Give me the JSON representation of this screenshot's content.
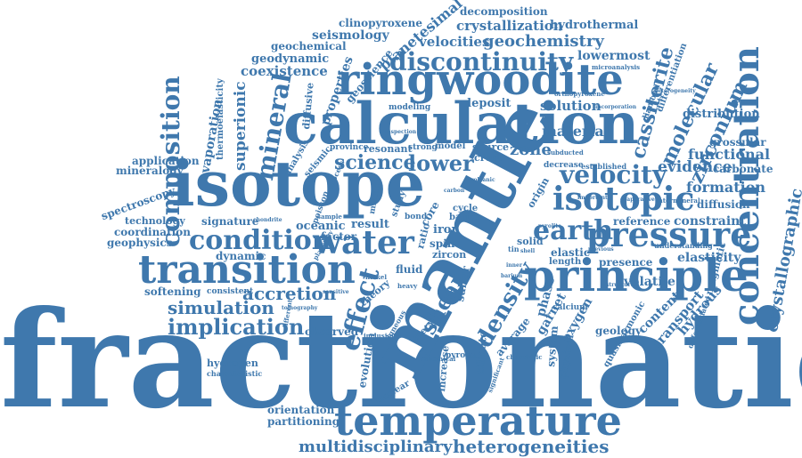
{
  "cloud": {
    "color": "#3f78ad",
    "background": "#ffffff",
    "words": {
      "fractionation": "fractionation",
      "mantle": "mantle",
      "isotope": "isotope",
      "calculation": "calculation",
      "ringwoodite": "ringwoodite",
      "temperature": "temperature",
      "principle": "principle",
      "transition": "transition",
      "pressure": "pressure",
      "concentration": "concentration",
      "water": "water",
      "isotopic": "isotopic",
      "condition": "condition",
      "composition": "composition",
      "discontinuity": "discontinuity",
      "velocity": "velocity",
      "earth": "earth",
      "mineral": "mineral",
      "effect": "effect",
      "density": "density",
      "shear": "shear",
      "implication": "implication",
      "simulation": "simulation",
      "accretion": "accretion",
      "heterogeneities": "heterogeneities",
      "multidisciplinary": "multidisciplinary",
      "cassiterite": "cassiterite",
      "molecular": "molecular",
      "zirconium": "zirconium",
      "crystallographic": "crystallographic",
      "lower": "lower",
      "science": "science",
      "geochemistry": "geochemistry",
      "crystallization": "crystallization",
      "velocities": "velocities",
      "planetesimal": "planetesimal",
      "seismology": "seismology",
      "clinopyroxene": "clinopyroxene",
      "decomposition": "decomposition",
      "hydrothermal": "hydrothermal",
      "lowermost": "lowermost",
      "geochemical": "geochemical",
      "geodynamic": "geodynamic",
      "coexistence": "coexistence",
      "superionic": "superionic",
      "evaporation": "evaporation",
      "thermoelasticity": "thermoelasticity",
      "diffusive": "diffusive",
      "properties": "properties",
      "geoscience": "geoscience",
      "solution": "solution",
      "deposit": "deposit",
      "material": "material",
      "zone": "zone",
      "evidence": "evidence",
      "formation": "formation",
      "functional": "functional",
      "distribution": "distribution",
      "grossular": "grossular",
      "carbonate": "carbonate",
      "diffusion": "diffusion",
      "constraint": "constraint",
      "reference": "reference",
      "elastic": "elastic",
      "presence": "presence",
      "elasticity": "elasticity",
      "hydrous": "hydrous",
      "transport": "transport",
      "content": "content",
      "volatile": "volatile",
      "garnet": "garnet",
      "oxygen": "oxygen",
      "phase": "phase",
      "geology": "geology",
      "quasiharmonic": "quasiharmonic",
      "magmatic": "magmatic",
      "differentiation": "differentiation",
      "application": "application",
      "mineralogy": "mineralogy",
      "spectroscopy": "spectroscopy",
      "technology": "technology",
      "coordination": "coordination",
      "geophysics": "geophysics",
      "signature": "signature",
      "dynamic": "dynamic",
      "softening": "softening",
      "consistent": "consistent",
      "hydrogen": "hydrogen",
      "characteristic": "characteristic",
      "observed": "observed",
      "orientation": "orientation",
      "partitioning": "partitioning",
      "evolution": "evolution",
      "nuclear": "nuclear",
      "increase": "increase",
      "silicate": "silicate",
      "average": "average",
      "system": "system",
      "physical": "physical",
      "oceanic": "oceanic",
      "result": "result",
      "factor": "factor",
      "fluid": "fluid",
      "theory": "theory",
      "sulfur": "sulfur",
      "metal": "metal",
      "pyrope": "pyrope",
      "iron": "iron",
      "core": "core",
      "spin": "spin",
      "zircon": "zircon",
      "barite": "barite",
      "cycle": "cycle",
      "solid": "solid",
      "length": "length",
      "resonant": "resonant",
      "strong": "strong",
      "model": "model",
      "source": "source",
      "crust": "crust",
      "province": "province",
      "analysis": "analysis",
      "seismic": "seismic",
      "modeling": "modeling",
      "poisson": "poisson",
      "study": "study",
      "mixing": "mixing",
      "bond": "bond",
      "ratio": "ratio",
      "origin": "origin",
      "decrease": "decrease",
      "calcium": "calcium",
      "diamond": "diamond",
      "established": "established",
      "intermineral": "intermineral",
      "understanding": "understanding",
      "differentiated": "differentiated",
      "subducted": "subducted",
      "orthopyroxene": "orthopyroxene",
      "microanalysis": "microanalysis",
      "incorporation": "incorporation",
      "heterogeneity": "heterogeneity",
      "sensitive": "sensitive",
      "heavy": "heavy",
      "nickel": "nickel",
      "planetary": "planetary",
      "chondritic": "chondritic",
      "different": "different",
      "igneous": "igneous",
      "inclusion": "inclusion",
      "significant": "significant",
      "chemical": "chemical",
      "important": "important",
      "evaporative": "evaporative",
      "process": "process",
      "sample": "sample",
      "barium": "barium",
      "inner": "inner",
      "shell": "shell",
      "tin": "tin",
      "carbon": "carbon",
      "volcanic": "volcanic",
      "pyrolite": "pyrolite",
      "previous": "previous",
      "chondrite": "chondrite",
      "inspection": "inspection",
      "tomography": "tomography",
      "structure": "structure"
    }
  }
}
